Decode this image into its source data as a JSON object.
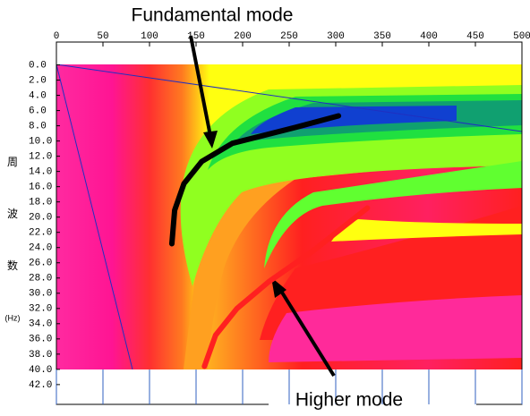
{
  "chart_data": {
    "type": "line",
    "xlim": [
      0,
      500
    ],
    "xticks": [
      0,
      50,
      100,
      150,
      200,
      250,
      300,
      350,
      400,
      450,
      500
    ],
    "ylim": [
      -3,
      44.6
    ],
    "yticks": [
      {
        "value": 0,
        "label": "0.0"
      },
      {
        "value": 2,
        "label": "2.0"
      },
      {
        "value": 4,
        "label": "4.0"
      },
      {
        "value": 6,
        "label": "6.0"
      },
      {
        "value": 8,
        "label": "8.0"
      },
      {
        "value": 10,
        "label": "10.0"
      },
      {
        "value": 12,
        "label": "12.0"
      },
      {
        "value": 14,
        "label": "14.0"
      },
      {
        "value": 16,
        "label": "16.0"
      },
      {
        "value": 18,
        "label": "18.0"
      },
      {
        "value": 20,
        "label": "20.0"
      },
      {
        "value": 22,
        "label": "22.0"
      },
      {
        "value": 24,
        "label": "24.0"
      },
      {
        "value": 26,
        "label": "26.0"
      },
      {
        "value": 28,
        "label": "28.0"
      },
      {
        "value": 30,
        "label": "30.0"
      },
      {
        "value": 32,
        "label": "32.0"
      },
      {
        "value": 34,
        "label": "34.0"
      },
      {
        "value": 36,
        "label": "36.0"
      },
      {
        "value": 38,
        "label": "38.0"
      },
      {
        "value": 40,
        "label": "40.0"
      },
      {
        "value": 42,
        "label": "42.0"
      }
    ],
    "y_label": [
      "周",
      "波",
      "数",
      "(Hz)"
    ],
    "series": [
      {
        "name": "Fundamental mode",
        "color": "#000000",
        "x": [
          303,
          257,
          189,
          156,
          137,
          127,
          124
        ],
        "values": [
          6.7,
          8.2,
          10.3,
          12.7,
          15.6,
          19.1,
          23.5
        ]
      },
      {
        "name": "Higher mode",
        "color": "#ff2020",
        "x": [
          334,
          276,
          228,
          194,
          171,
          159
        ],
        "values": [
          18.8,
          24.4,
          28.5,
          32.0,
          35.5,
          39.6
        ]
      }
    ]
  }
}
